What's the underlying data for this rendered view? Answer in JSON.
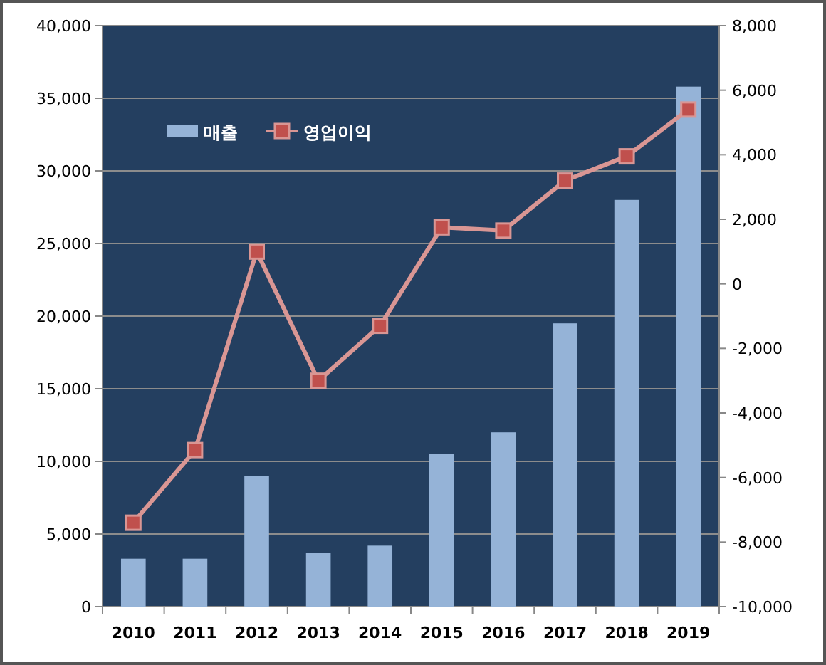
{
  "chart_data": {
    "type": "bar",
    "categories": [
      "2010",
      "2011",
      "2012",
      "2013",
      "2014",
      "2015",
      "2016",
      "2017",
      "2018",
      "2019"
    ],
    "series": [
      {
        "name": "매출",
        "color": "#95b3d7",
        "values": [
          3300,
          3300,
          9000,
          3700,
          4200,
          10500,
          12000,
          19500,
          28000,
          35800
        ]
      },
      {
        "name": "영업이익",
        "type": "line",
        "axis": "y2",
        "color": "#d99694",
        "values": [
          -7400,
          -5150,
          1000,
          -3000,
          -1300,
          1750,
          1650,
          3200,
          3950,
          5400
        ]
      }
    ],
    "ylim": [
      0,
      40000
    ],
    "yticks": [
      {
        "value": 0,
        "label": "0"
      },
      {
        "value": 5000,
        "label": "5,000"
      },
      {
        "value": 10000,
        "label": "10,000"
      },
      {
        "value": 15000,
        "label": "15,000"
      },
      {
        "value": 20000,
        "label": "20,000"
      },
      {
        "value": 25000,
        "label": "25,000"
      },
      {
        "value": 30000,
        "label": "30,000"
      },
      {
        "value": 35000,
        "label": "35,000"
      },
      {
        "value": 40000,
        "label": "40,000"
      }
    ],
    "y2lim": [
      -10000,
      8000
    ],
    "y2ticks": [
      {
        "value": -10000,
        "label": "-10,000"
      },
      {
        "value": -8000,
        "label": "-8,000"
      },
      {
        "value": -6000,
        "label": "-6,000"
      },
      {
        "value": -4000,
        "label": "-4,000"
      },
      {
        "value": -2000,
        "label": "-2,000"
      },
      {
        "value": 0,
        "label": "0"
      },
      {
        "value": 2000,
        "label": "2,000"
      },
      {
        "value": 4000,
        "label": "4,000"
      },
      {
        "value": 6000,
        "label": "6,000"
      },
      {
        "value": 8000,
        "label": "8,000"
      }
    ],
    "grid": "y",
    "legend": "top left",
    "marker": "square",
    "line_style": "solid"
  }
}
